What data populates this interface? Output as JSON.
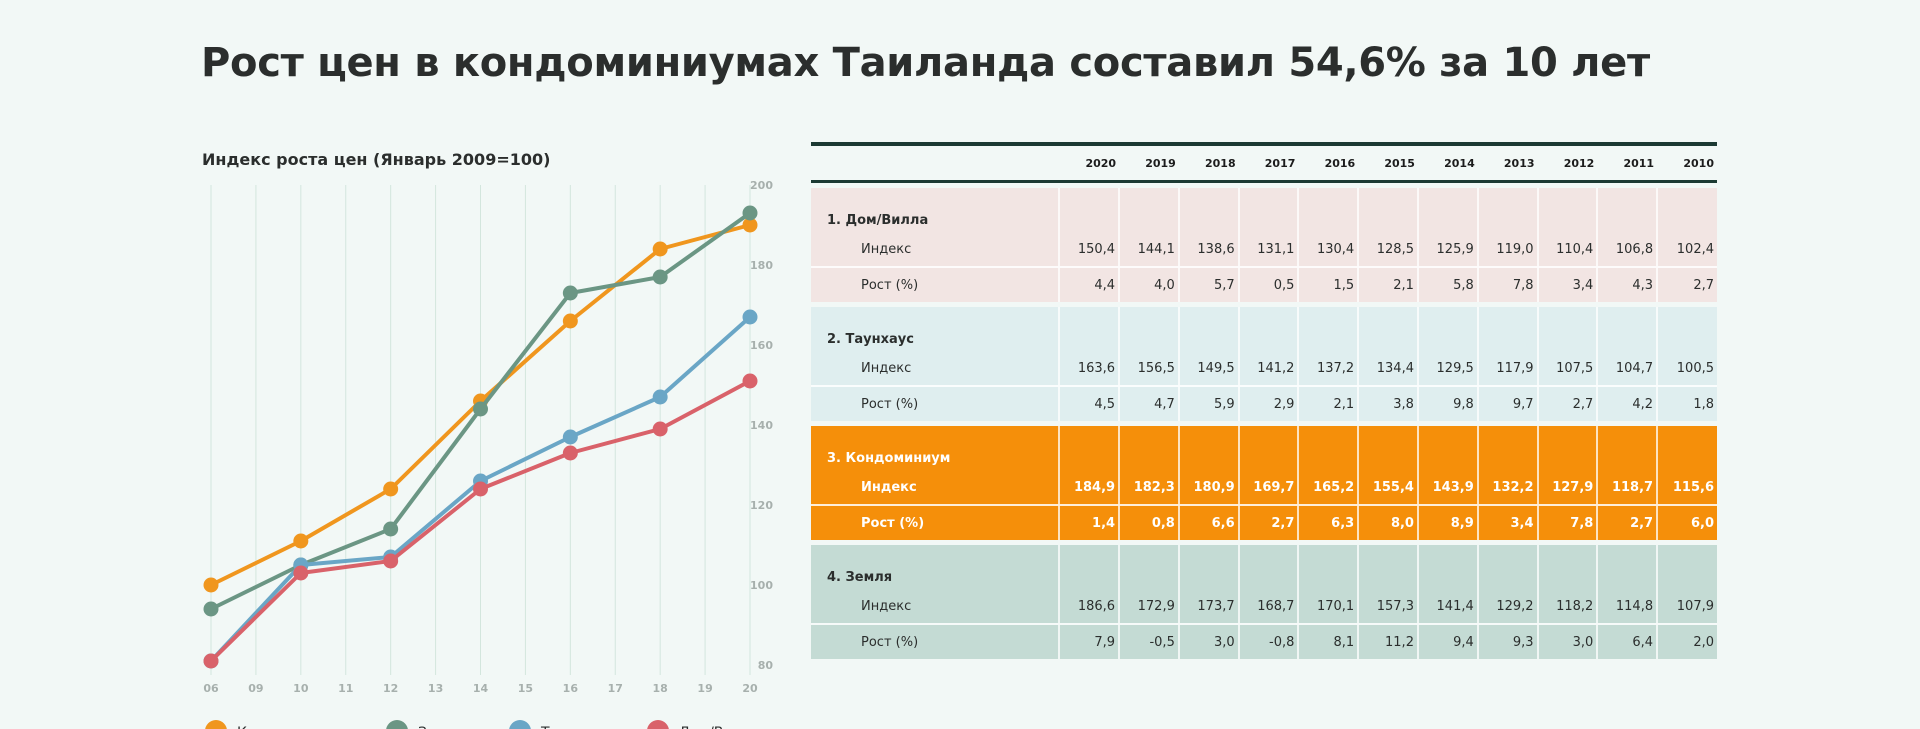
{
  "title": "Рост цен в кондоминиумах Таиланда составил 54,6% за 10 лет",
  "chart_data": {
    "type": "line",
    "title": "Индекс роста цен (Январь 2009=100)",
    "x_ticks": [
      "06",
      "09",
      "10",
      "11",
      "12",
      "13",
      "14",
      "15",
      "16",
      "17",
      "18",
      "19",
      "20"
    ],
    "y_ticks": [
      80,
      100,
      120,
      140,
      160,
      180,
      200
    ],
    "ylim": [
      75,
      200
    ],
    "x": [
      "06",
      "10",
      "12",
      "14",
      "16",
      "18",
      "20"
    ],
    "series": [
      {
        "name": "Кондоминиум",
        "color": "#f0961e",
        "values": [
          100,
          111,
          124,
          146,
          166,
          184,
          190
        ]
      },
      {
        "name": "Земля",
        "color": "#6b9684",
        "values": [
          94,
          105,
          114,
          144,
          173,
          177,
          193
        ]
      },
      {
        "name": "Таунхаус",
        "color": "#6aa6c6",
        "values": [
          81,
          105,
          107,
          126,
          137,
          147,
          167
        ]
      },
      {
        "name": "Дом/Вилла",
        "color": "#d9626a",
        "values": [
          81,
          103,
          106,
          124,
          133,
          139,
          151
        ]
      }
    ],
    "legend": "bottom"
  },
  "table": {
    "years": [
      "2020",
      "2019",
      "2018",
      "2017",
      "2016",
      "2015",
      "2014",
      "2013",
      "2012",
      "2011",
      "2010"
    ],
    "index_label": "Индекс",
    "growth_label": "Рост (%)",
    "groups": [
      {
        "name": "1. Дом/Вилла",
        "index": [
          "150,4",
          "144,1",
          "138,6",
          "131,1",
          "130,4",
          "128,5",
          "125,9",
          "119,0",
          "110,4",
          "106,8",
          "102,4"
        ],
        "growth": [
          "4,4",
          "4,0",
          "5,7",
          "0,5",
          "1,5",
          "2,1",
          "5,8",
          "7,8",
          "3,4",
          "4,3",
          "2,7"
        ]
      },
      {
        "name": "2. Таунхаус",
        "index": [
          "163,6",
          "156,5",
          "149,5",
          "141,2",
          "137,2",
          "134,4",
          "129,5",
          "117,9",
          "107,5",
          "104,7",
          "100,5"
        ],
        "growth": [
          "4,5",
          "4,7",
          "5,9",
          "2,9",
          "2,1",
          "3,8",
          "9,8",
          "9,7",
          "2,7",
          "4,2",
          "1,8"
        ]
      },
      {
        "name": "3. Кондоминиум",
        "index": [
          "184,9",
          "182,3",
          "180,9",
          "169,7",
          "165,2",
          "155,4",
          "143,9",
          "132,2",
          "127,9",
          "118,7",
          "115,6"
        ],
        "growth": [
          "1,4",
          "0,8",
          "6,6",
          "2,7",
          "6,3",
          "8,0",
          "8,9",
          "3,4",
          "7,8",
          "2,7",
          "6,0"
        ]
      },
      {
        "name": "4. Земля",
        "index": [
          "186,6",
          "172,9",
          "173,7",
          "168,7",
          "170,1",
          "157,3",
          "141,4",
          "129,2",
          "118,2",
          "114,8",
          "107,9"
        ],
        "growth": [
          "7,9",
          "-0,5",
          "3,0",
          "-0,8",
          "8,1",
          "11,2",
          "9,4",
          "9,3",
          "3,0",
          "6,4",
          "2,0"
        ]
      }
    ]
  }
}
